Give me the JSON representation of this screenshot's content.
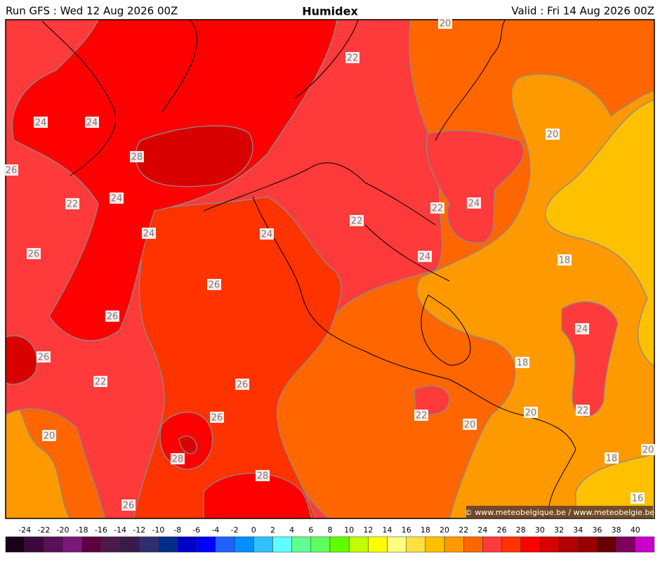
{
  "header": {
    "left": "Run GFS : Wed 12 Aug 2026 00Z",
    "title": "Humidex",
    "right": "Valid : Fri 14 Aug 2026 00Z"
  },
  "contour_labels": [
    20,
    22,
    24,
    24,
    28,
    26,
    20,
    24,
    22,
    22,
    24,
    22,
    24,
    24,
    26,
    24,
    18,
    26,
    26,
    24,
    26,
    18,
    22,
    26,
    20,
    22,
    22,
    20,
    26,
    20,
    20,
    28,
    18,
    28,
    26,
    16
  ],
  "colorbar": {
    "ticks": [
      -24,
      -22,
      -20,
      -18,
      -16,
      -14,
      -12,
      -10,
      -8,
      -6,
      -4,
      -2,
      0,
      2,
      4,
      6,
      8,
      10,
      12,
      14,
      16,
      18,
      20,
      22,
      24,
      26,
      28,
      30,
      32,
      34,
      36,
      38,
      40
    ],
    "colors": [
      "#1a001a",
      "#3a0a3a",
      "#5a0f5a",
      "#7a187a",
      "#600040",
      "#4a1a4a",
      "#3a1a4a",
      "#2e2e6e",
      "#002e8a",
      "#0000c8",
      "#0000ff",
      "#2060ff",
      "#0090ff",
      "#30c0ff",
      "#60ffff",
      "#60ff90",
      "#60ff60",
      "#60ff00",
      "#c0ff00",
      "#ffff00",
      "#ffff80",
      "#ffe040",
      "#ffc000",
      "#ff9900",
      "#ff6600",
      "#ff3a3a",
      "#ff3300",
      "#ff0000",
      "#d90000",
      "#b30000",
      "#990000",
      "#660000",
      "#800060",
      "#cc00cc"
    ]
  },
  "credit": "© www.meteobelgique.be / www.meteobelgie.be"
}
